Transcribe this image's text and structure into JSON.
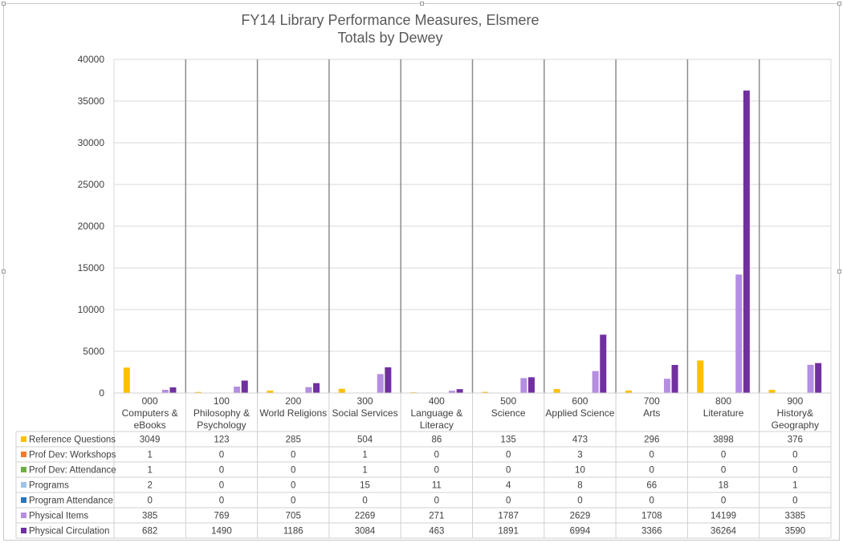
{
  "chart_data": {
    "type": "bar",
    "title": "FY14 Library Performance Measures, Elsmere",
    "subtitle": "Totals by Dewey",
    "ylim": [
      0,
      40000
    ],
    "yticks": [
      0,
      5000,
      10000,
      15000,
      20000,
      25000,
      30000,
      35000,
      40000
    ],
    "grid": true,
    "legend_placement": "data-table-left",
    "categories": [
      [
        "000",
        "Computers &",
        "eBooks"
      ],
      [
        "100",
        "Philosophy &",
        "Psychology"
      ],
      [
        "200",
        "World Religions"
      ],
      [
        "300",
        "Social Services"
      ],
      [
        "400",
        "Language &",
        "Literacy"
      ],
      [
        "500",
        "Science"
      ],
      [
        "600",
        "Applied Science"
      ],
      [
        "700",
        "Arts"
      ],
      [
        "800",
        "Literature"
      ],
      [
        "900",
        "History&",
        "Geography"
      ]
    ],
    "series": [
      {
        "name": "Reference Questions",
        "color": "#FFC000",
        "values": [
          3049,
          123,
          285,
          504,
          86,
          135,
          473,
          296,
          3898,
          376
        ]
      },
      {
        "name": "Prof Dev: Workshops",
        "color": "#ED7D31",
        "values": [
          1,
          0,
          0,
          1,
          0,
          0,
          3,
          0,
          0,
          0
        ]
      },
      {
        "name": "Prof Dev: Attendance",
        "color": "#70AD47",
        "values": [
          1,
          0,
          0,
          1,
          0,
          0,
          10,
          0,
          0,
          0
        ]
      },
      {
        "name": "Programs",
        "color": "#9DC3E6",
        "values": [
          2,
          0,
          0,
          15,
          11,
          4,
          8,
          66,
          18,
          1
        ]
      },
      {
        "name": "Program Attendance",
        "color": "#2E75B6",
        "values": [
          0,
          0,
          0,
          0,
          0,
          0,
          0,
          0,
          0,
          0
        ]
      },
      {
        "name": "Physical Items",
        "color": "#B48EE0",
        "values": [
          385,
          769,
          705,
          2269,
          271,
          1787,
          2629,
          1708,
          14199,
          3385
        ]
      },
      {
        "name": "Physical Circulation",
        "color": "#7030A0",
        "values": [
          682,
          1490,
          1186,
          3084,
          463,
          1891,
          6994,
          3366,
          36264,
          3590
        ]
      }
    ]
  }
}
